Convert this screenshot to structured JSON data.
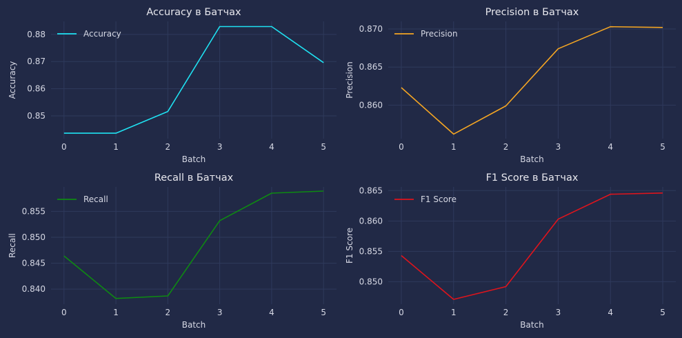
{
  "figure": {
    "background": "#212946",
    "plot_background": "#212946",
    "grid_color": "#2f3a5c"
  },
  "chart_data": [
    {
      "type": "line",
      "title": "Accuracy в Батчах",
      "xlabel": "Batch",
      "ylabel": "Accuracy",
      "x": [
        0,
        1,
        2,
        3,
        4,
        5
      ],
      "xticks": [
        "0",
        "1",
        "2",
        "3",
        "4",
        "5"
      ],
      "yticks": [
        0.85,
        0.86,
        0.87,
        0.88
      ],
      "ytick_labels": [
        "0.85",
        "0.86",
        "0.87",
        "0.88"
      ],
      "xlim": [
        -0.25,
        5.25
      ],
      "ylim": [
        0.8416,
        0.8848
      ],
      "grid": true,
      "legend_position": "upper-left",
      "series": [
        {
          "name": "Accuracy",
          "color": "#1fe2f2",
          "values": [
            0.8436,
            0.8436,
            0.8516,
            0.8829,
            0.8829,
            0.8696
          ]
        }
      ]
    },
    {
      "type": "line",
      "title": "Precision в Батчах",
      "xlabel": "Batch",
      "ylabel": "Precision",
      "x": [
        0,
        1,
        2,
        3,
        4,
        5
      ],
      "xticks": [
        "0",
        "1",
        "2",
        "3",
        "4",
        "5"
      ],
      "yticks": [
        0.86,
        0.865,
        0.87
      ],
      "ytick_labels": [
        "0.860",
        "0.865",
        "0.870"
      ],
      "xlim": [
        -0.25,
        5.25
      ],
      "ylim": [
        0.8556,
        0.871
      ],
      "grid": true,
      "legend_position": "upper-left",
      "series": [
        {
          "name": "Precision",
          "color": "#f5a623",
          "values": [
            0.8623,
            0.8562,
            0.8599,
            0.8674,
            0.8703,
            0.8702
          ]
        }
      ]
    },
    {
      "type": "line",
      "title": "Recall в Батчах",
      "xlabel": "Batch",
      "ylabel": "Recall",
      "x": [
        0,
        1,
        2,
        3,
        4,
        5
      ],
      "xticks": [
        "0",
        "1",
        "2",
        "3",
        "4",
        "5"
      ],
      "yticks": [
        0.84,
        0.845,
        0.85,
        0.855
      ],
      "ytick_labels": [
        "0.840",
        "0.845",
        "0.850",
        "0.855"
      ],
      "xlim": [
        -0.25,
        5.25
      ],
      "ylim": [
        0.8371,
        0.8597
      ],
      "grid": true,
      "legend_position": "upper-left",
      "series": [
        {
          "name": "Recall",
          "color": "#0e8a12",
          "values": [
            0.8464,
            0.8382,
            0.8387,
            0.8532,
            0.8585,
            0.8589
          ]
        }
      ]
    },
    {
      "type": "line",
      "title": "F1 Score в Батчах",
      "xlabel": "Batch",
      "ylabel": "F1 Score",
      "x": [
        0,
        1,
        2,
        3,
        4,
        5
      ],
      "xticks": [
        "0",
        "1",
        "2",
        "3",
        "4",
        "5"
      ],
      "yticks": [
        0.85,
        0.855,
        0.86,
        0.865
      ],
      "ytick_labels": [
        "0.850",
        "0.855",
        "0.860",
        "0.865"
      ],
      "xlim": [
        -0.25,
        5.25
      ],
      "ylim": [
        0.8463,
        0.8656
      ],
      "grid": true,
      "legend_position": "upper-left",
      "series": [
        {
          "name": "F1 Score",
          "color": "#e0141c",
          "values": [
            0.8543,
            0.8471,
            0.8492,
            0.8603,
            0.8644,
            0.8646
          ]
        }
      ]
    }
  ]
}
